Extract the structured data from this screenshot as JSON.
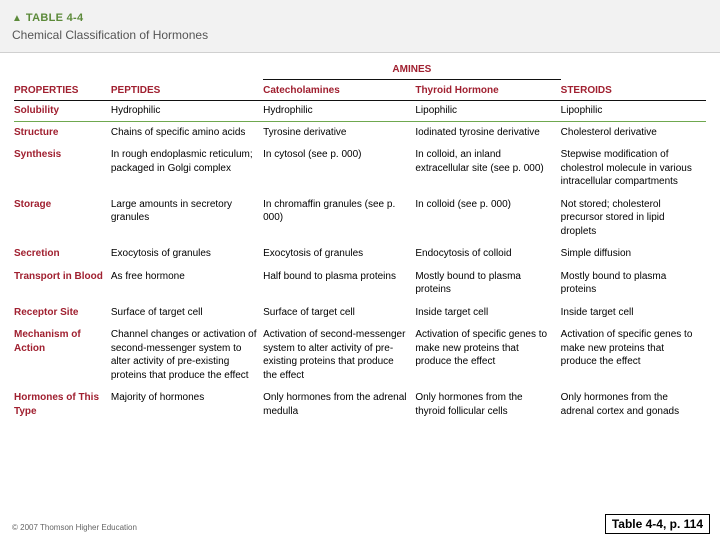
{
  "header": {
    "table_number": "TABLE 4-4",
    "title": "Chemical Classification of Hormones"
  },
  "columns": {
    "properties": "PROPERTIES",
    "peptides": "PEPTIDES",
    "amines_group": "AMINES",
    "catecholamines": "Catecholamines",
    "thyroid": "Thyroid Hormone",
    "steroids": "STEROIDS"
  },
  "rows": {
    "solubility": {
      "label": "Solubility",
      "peptides": "Hydrophilic",
      "catecholamines": "Hydrophilic",
      "thyroid": "Lipophilic",
      "steroids": "Lipophilic"
    },
    "structure": {
      "label": "Structure",
      "peptides": "Chains of specific amino acids",
      "catecholamines": "Tyrosine derivative",
      "thyroid": "Iodinated tyrosine derivative",
      "steroids": "Cholesterol derivative"
    },
    "synthesis": {
      "label": "Synthesis",
      "peptides": "In rough endoplasmic reticulum; packaged in Golgi complex",
      "catecholamines": "In cytosol (see p. 000)",
      "thyroid": "In colloid, an inland extracellular site (see p. 000)",
      "steroids": "Stepwise modification of cholestrol molecule in various intracellular compartments"
    },
    "storage": {
      "label": "Storage",
      "peptides": "Large amounts in secretory granules",
      "catecholamines": "In chromaffin granules (see p. 000)",
      "thyroid": "In colloid (see p. 000)",
      "steroids": "Not stored; cholesterol precursor stored in lipid droplets"
    },
    "secretion": {
      "label": "Secretion",
      "peptides": "Exocytosis of granules",
      "catecholamines": "Exocytosis of granules",
      "thyroid": "Endocytosis of colloid",
      "steroids": "Simple diffusion"
    },
    "transport": {
      "label": "Transport in Blood",
      "peptides": "As free hormone",
      "catecholamines": "Half bound to plasma proteins",
      "thyroid": "Mostly bound to plasma proteins",
      "steroids": "Mostly bound to plasma proteins"
    },
    "receptor": {
      "label": "Receptor Site",
      "peptides": "Surface of target cell",
      "catecholamines": "Surface of target cell",
      "thyroid": "Inside target cell",
      "steroids": "Inside target cell"
    },
    "mechanism": {
      "label": "Mechanism of Action",
      "peptides": "Channel changes or activation of second-messenger system to alter activity of pre-existing proteins that produce the effect",
      "catecholamines": "Activation of second-messenger system to alter activity of pre-existing proteins that produce the effect",
      "thyroid": "Activation of specific genes to make new proteins that produce the effect",
      "steroids": "Activation of specific genes to make new proteins that produce the effect"
    },
    "hormones_type": {
      "label": "Hormones of This Type",
      "peptides": "Majority of hormones",
      "catecholamines": "Only hormones from the adrenal medulla",
      "thyroid": "Only hormones from the thyroid follicular cells",
      "steroids": "Only hormones from the adrenal cortex and gonads"
    }
  },
  "footer": {
    "copyright": "© 2007 Thomson Higher Education",
    "page_ref": "Table 4-4, p. 114"
  },
  "colors": {
    "accent_red": "#a02030",
    "accent_green": "#6fa84f",
    "header_bg": "#f2f2f2",
    "text": "#222222"
  }
}
